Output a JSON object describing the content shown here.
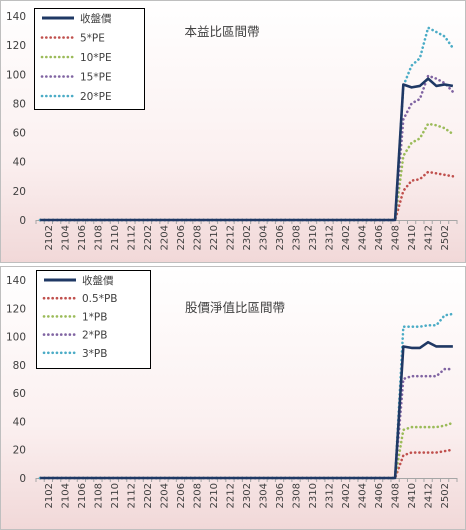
{
  "chart_data": [
    {
      "type": "line",
      "title": "本益比區間帶",
      "ylim": [
        0,
        140
      ],
      "y_ticks": [
        "0",
        "20",
        "40",
        "60",
        "80",
        "100",
        "120",
        "140"
      ],
      "x": [
        "2101",
        "2102",
        "2103",
        "2104",
        "2105",
        "2106",
        "2107",
        "2108",
        "2109",
        "2110",
        "2111",
        "2112",
        "2201",
        "2202",
        "2203",
        "2204",
        "2205",
        "2206",
        "2207",
        "2208",
        "2209",
        "2210",
        "2211",
        "2212",
        "2301",
        "2302",
        "2303",
        "2304",
        "2305",
        "2306",
        "2307",
        "2308",
        "2309",
        "2310",
        "2311",
        "2312",
        "2401",
        "2402",
        "2403",
        "2404",
        "2405",
        "2406",
        "2407",
        "2408",
        "2409",
        "2410",
        "2411",
        "2412",
        "2501",
        "2502",
        "2503"
      ],
      "x_tick_labels": [
        "2102",
        "2104",
        "2106",
        "2108",
        "2110",
        "2112",
        "2202",
        "2204",
        "2206",
        "2208",
        "2210",
        "2212",
        "2302",
        "2304",
        "2306",
        "2308",
        "2310",
        "2312",
        "2402",
        "2404",
        "2406",
        "2408",
        "2410",
        "2412",
        "2502"
      ],
      "grid": false,
      "legend_position": "top-left",
      "series": [
        {
          "name": "收盤價",
          "color": "#1f3864",
          "style": "solid",
          "values": [
            0,
            0,
            0,
            0,
            0,
            0,
            0,
            0,
            0,
            0,
            0,
            0,
            0,
            0,
            0,
            0,
            0,
            0,
            0,
            0,
            0,
            0,
            0,
            0,
            0,
            0,
            0,
            0,
            0,
            0,
            0,
            0,
            0,
            0,
            0,
            0,
            0,
            0,
            0,
            0,
            0,
            0,
            0,
            0,
            93,
            91,
            92,
            97,
            92,
            93,
            92
          ]
        },
        {
          "name": "5*PE",
          "color": "#c0504d",
          "style": "dotted",
          "values": [
            0,
            0,
            0,
            0,
            0,
            0,
            0,
            0,
            0,
            0,
            0,
            0,
            0,
            0,
            0,
            0,
            0,
            0,
            0,
            0,
            0,
            0,
            0,
            0,
            0,
            0,
            0,
            0,
            0,
            0,
            0,
            0,
            0,
            0,
            0,
            0,
            0,
            0,
            0,
            0,
            0,
            0,
            0,
            0,
            20,
            27,
            28,
            33,
            32,
            31,
            30
          ]
        },
        {
          "name": "10*PE",
          "color": "#9bbb59",
          "style": "dotted",
          "values": [
            0,
            0,
            0,
            0,
            0,
            0,
            0,
            0,
            0,
            0,
            0,
            0,
            0,
            0,
            0,
            0,
            0,
            0,
            0,
            0,
            0,
            0,
            0,
            0,
            0,
            0,
            0,
            0,
            0,
            0,
            0,
            0,
            0,
            0,
            0,
            0,
            0,
            0,
            0,
            0,
            0,
            0,
            0,
            0,
            44,
            53,
            56,
            66,
            65,
            63,
            59
          ]
        },
        {
          "name": "15*PE",
          "color": "#8064a2",
          "style": "dotted",
          "values": [
            0,
            0,
            0,
            0,
            0,
            0,
            0,
            0,
            0,
            0,
            0,
            0,
            0,
            0,
            0,
            0,
            0,
            0,
            0,
            0,
            0,
            0,
            0,
            0,
            0,
            0,
            0,
            0,
            0,
            0,
            0,
            0,
            0,
            0,
            0,
            0,
            0,
            0,
            0,
            0,
            0,
            0,
            0,
            0,
            69,
            80,
            83,
            99,
            97,
            94,
            88
          ]
        },
        {
          "name": "20*PE",
          "color": "#4bacc6",
          "style": "dotted",
          "values": [
            0,
            0,
            0,
            0,
            0,
            0,
            0,
            0,
            0,
            0,
            0,
            0,
            0,
            0,
            0,
            0,
            0,
            0,
            0,
            0,
            0,
            0,
            0,
            0,
            0,
            0,
            0,
            0,
            0,
            0,
            0,
            0,
            0,
            0,
            0,
            0,
            0,
            0,
            0,
            0,
            0,
            0,
            0,
            0,
            92,
            106,
            111,
            132,
            129,
            126,
            118
          ]
        }
      ]
    },
    {
      "type": "line",
      "title": "股價淨值比區間帶",
      "ylim": [
        0,
        140
      ],
      "y_ticks": [
        "0",
        "20",
        "40",
        "60",
        "80",
        "100",
        "120",
        "140"
      ],
      "x": [
        "2101",
        "2102",
        "2103",
        "2104",
        "2105",
        "2106",
        "2107",
        "2108",
        "2109",
        "2110",
        "2111",
        "2112",
        "2201",
        "2202",
        "2203",
        "2204",
        "2205",
        "2206",
        "2207",
        "2208",
        "2209",
        "2210",
        "2211",
        "2212",
        "2301",
        "2302",
        "2303",
        "2304",
        "2305",
        "2306",
        "2307",
        "2308",
        "2309",
        "2310",
        "2311",
        "2312",
        "2401",
        "2402",
        "2403",
        "2404",
        "2405",
        "2406",
        "2407",
        "2408",
        "2409",
        "2410",
        "2411",
        "2412",
        "2501",
        "2502",
        "2503"
      ],
      "x_tick_labels": [
        "2102",
        "2104",
        "2106",
        "2108",
        "2110",
        "2112",
        "2202",
        "2204",
        "2206",
        "2208",
        "2210",
        "2212",
        "2302",
        "2304",
        "2306",
        "2308",
        "2310",
        "2312",
        "2402",
        "2404",
        "2406",
        "2408",
        "2410",
        "2412",
        "2502"
      ],
      "grid": false,
      "legend_position": "top-left",
      "series": [
        {
          "name": "收盤價",
          "color": "#1f3864",
          "style": "solid",
          "values": [
            0,
            0,
            0,
            0,
            0,
            0,
            0,
            0,
            0,
            0,
            0,
            0,
            0,
            0,
            0,
            0,
            0,
            0,
            0,
            0,
            0,
            0,
            0,
            0,
            0,
            0,
            0,
            0,
            0,
            0,
            0,
            0,
            0,
            0,
            0,
            0,
            0,
            0,
            0,
            0,
            0,
            0,
            0,
            0,
            93,
            92,
            92,
            96,
            93,
            93,
            93
          ]
        },
        {
          "name": "0.5*PB",
          "color": "#c0504d",
          "style": "dotted",
          "values": [
            0,
            0,
            0,
            0,
            0,
            0,
            0,
            0,
            0,
            0,
            0,
            0,
            0,
            0,
            0,
            0,
            0,
            0,
            0,
            0,
            0,
            0,
            0,
            0,
            0,
            0,
            0,
            0,
            0,
            0,
            0,
            0,
            0,
            0,
            0,
            0,
            0,
            0,
            0,
            0,
            0,
            0,
            0,
            0,
            16,
            18,
            18,
            18,
            18,
            19,
            20
          ]
        },
        {
          "name": "1*PB",
          "color": "#9bbb59",
          "style": "dotted",
          "values": [
            0,
            0,
            0,
            0,
            0,
            0,
            0,
            0,
            0,
            0,
            0,
            0,
            0,
            0,
            0,
            0,
            0,
            0,
            0,
            0,
            0,
            0,
            0,
            0,
            0,
            0,
            0,
            0,
            0,
            0,
            0,
            0,
            0,
            0,
            0,
            0,
            0,
            0,
            0,
            0,
            0,
            0,
            0,
            0,
            34,
            36,
            36,
            36,
            36,
            37,
            39
          ]
        },
        {
          "name": "2*PB",
          "color": "#8064a2",
          "style": "dotted",
          "values": [
            0,
            0,
            0,
            0,
            0,
            0,
            0,
            0,
            0,
            0,
            0,
            0,
            0,
            0,
            0,
            0,
            0,
            0,
            0,
            0,
            0,
            0,
            0,
            0,
            0,
            0,
            0,
            0,
            0,
            0,
            0,
            0,
            0,
            0,
            0,
            0,
            0,
            0,
            0,
            0,
            0,
            0,
            0,
            0,
            70,
            72,
            72,
            72,
            72,
            77,
            77
          ]
        },
        {
          "name": "3*PB",
          "color": "#4bacc6",
          "style": "dotted",
          "values": [
            0,
            0,
            0,
            0,
            0,
            0,
            0,
            0,
            0,
            0,
            0,
            0,
            0,
            0,
            0,
            0,
            0,
            0,
            0,
            0,
            0,
            0,
            0,
            0,
            0,
            0,
            0,
            0,
            0,
            0,
            0,
            0,
            0,
            0,
            0,
            0,
            0,
            0,
            0,
            0,
            0,
            0,
            0,
            0,
            107,
            107,
            107,
            108,
            108,
            115,
            116
          ]
        }
      ]
    }
  ]
}
